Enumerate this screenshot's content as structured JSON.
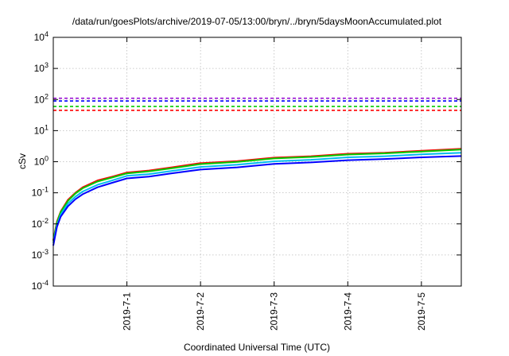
{
  "chart_data": {
    "type": "line",
    "title": "/data/run/goesPlots/archive/2019-07-05/13:00/bryn/../bryn/5daysMoonAccumulated.plot",
    "xlabel": "Coordinated Universal Time (UTC)",
    "ylabel": "cSv",
    "yscale": "log",
    "ylim": [
      0.0001,
      10000
    ],
    "y_ticks": [
      {
        "value": 0.0001,
        "base": "10",
        "exp": "-4"
      },
      {
        "value": 0.001,
        "base": "10",
        "exp": "-3"
      },
      {
        "value": 0.01,
        "base": "10",
        "exp": "-2"
      },
      {
        "value": 0.1,
        "base": "10",
        "exp": "-1"
      },
      {
        "value": 1,
        "base": "10",
        "exp": "0"
      },
      {
        "value": 10,
        "base": "10",
        "exp": "1"
      },
      {
        "value": 100,
        "base": "10",
        "exp": "2"
      },
      {
        "value": 1000,
        "base": "10",
        "exp": "3"
      },
      {
        "value": 10000,
        "base": "10",
        "exp": "4"
      }
    ],
    "xlim": [
      "2019-06-30 00:00",
      "2019-07-05 13:00"
    ],
    "x_ticks": [
      "2019-7-1",
      "2019-7-2",
      "2019-7-3",
      "2019-7-4",
      "2019-7-5"
    ],
    "grid": true,
    "legend": "none",
    "thresholds": [
      {
        "value": 110,
        "color": "#9400d3"
      },
      {
        "value": 90,
        "color": "#0000ff"
      },
      {
        "value": 60,
        "color": "#00cc00"
      },
      {
        "value": 45,
        "color": "#ff0000"
      }
    ],
    "series": [
      {
        "color": "#ff0000",
        "x": [
          "2019-06-30 00:00",
          "2019-06-30 01:12",
          "2019-06-30 02:24",
          "2019-06-30 04:48",
          "2019-06-30 07:12",
          "2019-06-30 09:36",
          "2019-06-30 14:24",
          "2019-06-30 19:12",
          "2019-07-01 00:00",
          "2019-07-01 07:12",
          "2019-07-01 14:24",
          "2019-07-02 00:00",
          "2019-07-02 12:00",
          "2019-07-03 00:00",
          "2019-07-03 12:00",
          "2019-07-04 00:00",
          "2019-07-04 12:00",
          "2019-07-05 00:00",
          "2019-07-05 13:00"
        ],
        "y": [
          0.003,
          0.012,
          0.025,
          0.06,
          0.1,
          0.15,
          0.25,
          0.33,
          0.45,
          0.52,
          0.65,
          0.9,
          1.05,
          1.35,
          1.5,
          1.8,
          1.95,
          2.25,
          2.6
        ]
      },
      {
        "color": "#00cc00",
        "x": [
          "2019-06-30 00:00",
          "2019-06-30 01:12",
          "2019-06-30 02:24",
          "2019-06-30 04:48",
          "2019-06-30 07:12",
          "2019-06-30 09:36",
          "2019-06-30 14:24",
          "2019-06-30 19:12",
          "2019-07-01 00:00",
          "2019-07-01 07:12",
          "2019-07-01 14:24",
          "2019-07-02 00:00",
          "2019-07-02 12:00",
          "2019-07-03 00:00",
          "2019-07-03 12:00",
          "2019-07-04 00:00",
          "2019-07-04 12:00",
          "2019-07-05 00:00",
          "2019-07-05 13:00"
        ],
        "y": [
          0.0028,
          0.011,
          0.024,
          0.055,
          0.095,
          0.14,
          0.23,
          0.31,
          0.42,
          0.49,
          0.61,
          0.84,
          0.98,
          1.27,
          1.42,
          1.7,
          1.85,
          2.12,
          2.45
        ]
      },
      {
        "color": "#00bbee",
        "x": [
          "2019-06-30 00:00",
          "2019-06-30 01:12",
          "2019-06-30 02:24",
          "2019-06-30 04:48",
          "2019-06-30 07:12",
          "2019-06-30 09:36",
          "2019-06-30 14:24",
          "2019-06-30 19:12",
          "2019-07-01 00:00",
          "2019-07-01 07:12",
          "2019-07-01 14:24",
          "2019-07-02 00:00",
          "2019-07-02 12:00",
          "2019-07-03 00:00",
          "2019-07-03 12:00",
          "2019-07-04 00:00",
          "2019-07-04 12:00",
          "2019-07-05 00:00",
          "2019-07-05 13:00"
        ],
        "y": [
          0.0024,
          0.009,
          0.02,
          0.045,
          0.075,
          0.11,
          0.18,
          0.25,
          0.35,
          0.4,
          0.5,
          0.68,
          0.8,
          1.03,
          1.15,
          1.38,
          1.5,
          1.72,
          1.95
        ]
      },
      {
        "color": "#0000ff",
        "x": [
          "2019-06-30 00:00",
          "2019-06-30 01:12",
          "2019-06-30 02:24",
          "2019-06-30 04:48",
          "2019-06-30 07:12",
          "2019-06-30 09:36",
          "2019-06-30 14:24",
          "2019-06-30 19:12",
          "2019-07-01 00:00",
          "2019-07-01 07:12",
          "2019-07-01 14:24",
          "2019-07-02 00:00",
          "2019-07-02 12:00",
          "2019-07-03 00:00",
          "2019-07-03 12:00",
          "2019-07-04 00:00",
          "2019-07-04 12:00",
          "2019-07-05 00:00",
          "2019-07-05 13:00"
        ],
        "y": [
          0.002,
          0.008,
          0.017,
          0.037,
          0.062,
          0.09,
          0.15,
          0.21,
          0.29,
          0.33,
          0.42,
          0.56,
          0.66,
          0.85,
          0.95,
          1.12,
          1.22,
          1.38,
          1.52
        ]
      }
    ]
  }
}
